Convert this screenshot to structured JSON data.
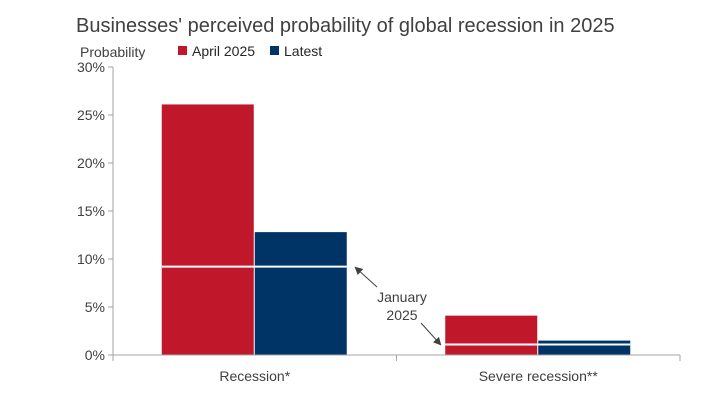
{
  "chart_data": {
    "type": "bar",
    "title": "Businesses' perceived probability of global recession in 2025",
    "ylabel": "Probability",
    "ylim": [
      0,
      30
    ],
    "yticks": [
      0,
      5,
      10,
      15,
      20,
      25,
      30
    ],
    "ytick_labels": [
      "0%",
      "5%",
      "10%",
      "15%",
      "20%",
      "25%",
      "30%"
    ],
    "categories": [
      "Recession*",
      "Severe recession**"
    ],
    "series": [
      {
        "name": "April 2025",
        "values": [
          26.1,
          4.1
        ],
        "color": "#c0172b"
      },
      {
        "name": "Latest",
        "values": [
          12.8,
          1.5
        ],
        "color": "#003366"
      }
    ],
    "january_2025": [
      9.2,
      1.1
    ],
    "annotation": {
      "line1": "January",
      "line2": "2025"
    },
    "legend": "top-left",
    "grid": false
  }
}
